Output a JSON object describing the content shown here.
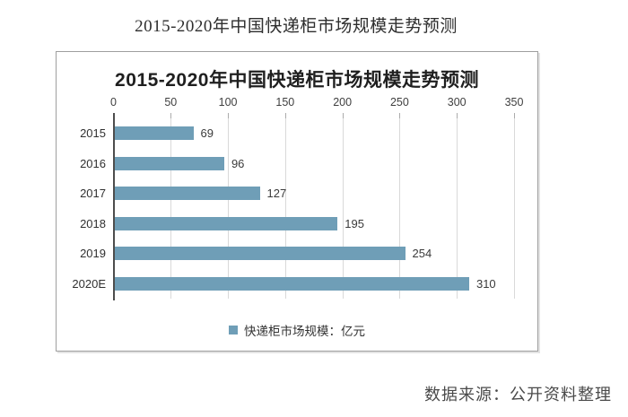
{
  "page": {
    "title": "2015-2020年中国快递柜市场规模走势预测",
    "source_note": "数据来源：公开资料整理"
  },
  "chart": {
    "title": "2015-2020年中国快递柜市场规模走势预测",
    "legend_label": "快递柜市场规模：亿元"
  },
  "colors": {
    "bar": "#6f9eb7",
    "gridline": "#d9d9d9",
    "axis_line": "#4d4d4d",
    "tick_mark": "#ababab",
    "text": "#3a3a3a"
  },
  "chart_data": {
    "type": "bar",
    "orientation": "horizontal",
    "title": "2015-2020年中国快递柜市场规模走势预测",
    "categories": [
      "2015",
      "2016",
      "2017",
      "2018",
      "2019",
      "2020E"
    ],
    "values": [
      69,
      96,
      127,
      195,
      254,
      310
    ],
    "series": [
      {
        "name": "快递柜市场规模：亿元",
        "values": [
          69,
          96,
          127,
          195,
          254,
          310
        ]
      }
    ],
    "xlabel": "",
    "ylabel": "",
    "xlim": [
      0,
      350
    ],
    "xticks": [
      0,
      50,
      100,
      150,
      200,
      250,
      300,
      350
    ],
    "axis_position": "top",
    "grid": true,
    "legend_position": "bottom",
    "data_labels": true
  }
}
